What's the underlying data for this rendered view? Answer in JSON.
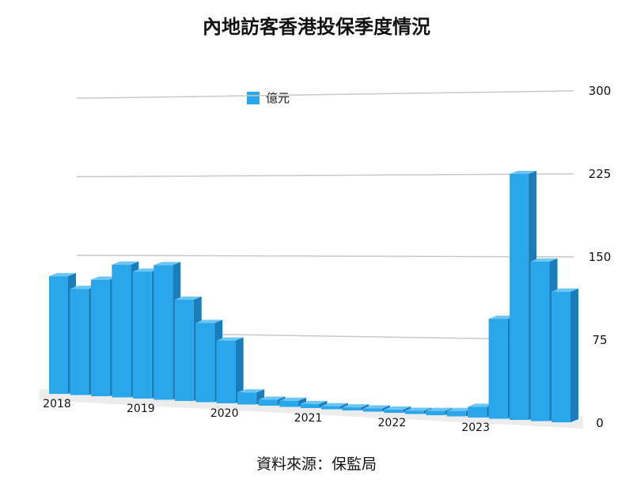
{
  "chart_data": {
    "type": "bar",
    "title": "內地訪客香港投保季度情況",
    "series": [
      {
        "name": "億元",
        "color": "#2aa7ea",
        "values": [
          125,
          112,
          122,
          138,
          131,
          138,
          103,
          80,
          63,
          12,
          6,
          6,
          4,
          3,
          3,
          3,
          3,
          3,
          4,
          5,
          10,
          92,
          225,
          145,
          118
        ]
      }
    ],
    "year_labels": [
      {
        "label": "2018",
        "bar_index": 0
      },
      {
        "label": "2019",
        "bar_index": 4
      },
      {
        "label": "2020",
        "bar_index": 8
      },
      {
        "label": "2021",
        "bar_index": 12
      },
      {
        "label": "2022",
        "bar_index": 16
      },
      {
        "label": "2023",
        "bar_index": 20
      }
    ],
    "yticks": [
      "0",
      "75",
      "150",
      "225",
      "300"
    ],
    "ylim": [
      0,
      300
    ],
    "grid": true,
    "legend_position": "top"
  },
  "source": "資料來源：保監局"
}
